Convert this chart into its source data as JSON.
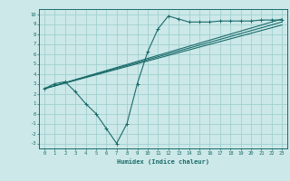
{
  "xlabel": "Humidex (Indice chaleur)",
  "background_color": "#cce8e8",
  "grid_color": "#99cccc",
  "line_color": "#1a6b6b",
  "xlim": [
    -0.5,
    23.5
  ],
  "ylim": [
    -3.5,
    10.5
  ],
  "xticks": [
    0,
    1,
    2,
    3,
    4,
    5,
    6,
    7,
    8,
    9,
    10,
    11,
    12,
    13,
    14,
    15,
    16,
    17,
    18,
    19,
    20,
    21,
    22,
    23
  ],
  "yticks": [
    -3,
    -2,
    -1,
    0,
    1,
    2,
    3,
    4,
    5,
    6,
    7,
    8,
    9,
    10
  ],
  "line1_x": [
    0,
    1,
    2,
    3,
    4,
    5,
    6,
    7,
    8,
    9,
    10,
    11,
    12,
    13,
    14,
    15,
    16,
    17,
    18,
    19,
    20,
    21,
    22,
    23
  ],
  "line1_y": [
    2.5,
    3.0,
    3.2,
    2.2,
    1.0,
    0.0,
    -1.5,
    -3.0,
    -1.0,
    3.0,
    6.2,
    8.5,
    9.8,
    9.5,
    9.2,
    9.2,
    9.2,
    9.3,
    9.3,
    9.3,
    9.3,
    9.4,
    9.4,
    9.4
  ],
  "line2_x": [
    0,
    23
  ],
  "line2_y": [
    2.5,
    9.5
  ],
  "line3_x": [
    0,
    23
  ],
  "line3_y": [
    2.5,
    9.2
  ],
  "line4_x": [
    0,
    23
  ],
  "line4_y": [
    2.5,
    8.9
  ]
}
